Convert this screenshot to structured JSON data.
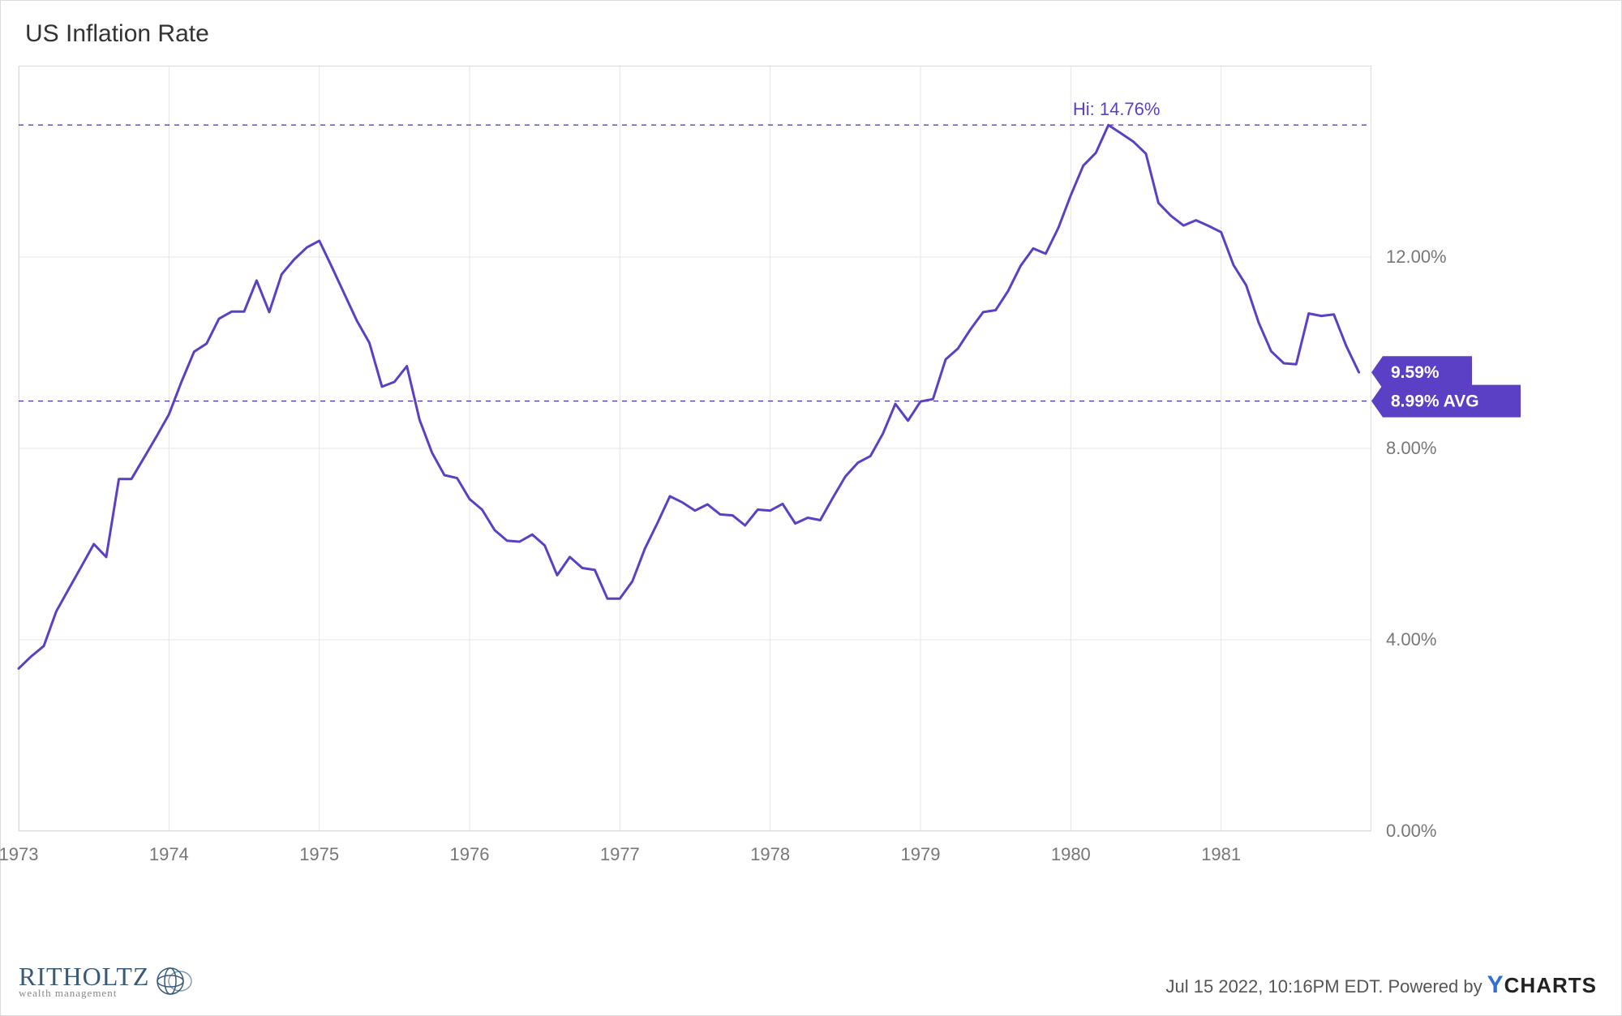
{
  "title": "US Inflation Rate",
  "footer": {
    "timestamp": "Jul 15 2022, 10:16PM EDT. Powered by",
    "brand_logo_text": "RITHOLTZ",
    "brand_subtext": "wealth management",
    "ycharts_text": "CHARTS"
  },
  "chart": {
    "type": "line",
    "background_color": "#ffffff",
    "grid_color": "#e6e6e6",
    "border_color": "#dcdcdc",
    "line_color": "#5b3fc4",
    "line_width": 3,
    "dashed_line_color": "#4b2fb0",
    "dashed_width": 1.2,
    "dashed_dasharray": "6 6",
    "axis_text_color": "#777",
    "axis_fontsize": 22,
    "hi_label": "Hi: 14.76%",
    "hi_label_color": "#5b3fc4",
    "flags": {
      "current": {
        "text": "9.59%",
        "bg": "#5b3fc4",
        "value": 9.59
      },
      "avg": {
        "text": "8.99% AVG",
        "bg": "#5b3fc4",
        "value": 8.99
      }
    },
    "x": {
      "start": 1973.0,
      "end": 1982.0,
      "tick_start": 1973,
      "tick_end": 1981,
      "tick_step": 1
    },
    "y": {
      "min": 0.0,
      "max": 16.0,
      "ticks": [
        0,
        4,
        8,
        12
      ],
      "tick_format_suffix": ".00%"
    },
    "hi_value": 14.76,
    "avg_value": 8.99,
    "data": [
      [
        1973.0,
        3.4
      ],
      [
        1973.083,
        3.65
      ],
      [
        1973.167,
        3.87
      ],
      [
        1973.25,
        4.59
      ],
      [
        1973.333,
        5.06
      ],
      [
        1973.417,
        5.53
      ],
      [
        1973.5,
        6.0
      ],
      [
        1973.583,
        5.73
      ],
      [
        1973.667,
        7.36
      ],
      [
        1973.75,
        7.36
      ],
      [
        1973.833,
        7.8
      ],
      [
        1973.917,
        8.25
      ],
      [
        1974.0,
        8.71
      ],
      [
        1974.083,
        9.39
      ],
      [
        1974.167,
        10.02
      ],
      [
        1974.25,
        10.19
      ],
      [
        1974.333,
        10.71
      ],
      [
        1974.417,
        10.86
      ],
      [
        1974.5,
        10.86
      ],
      [
        1974.583,
        11.51
      ],
      [
        1974.667,
        10.85
      ],
      [
        1974.75,
        11.64
      ],
      [
        1974.833,
        11.95
      ],
      [
        1974.917,
        12.2
      ],
      [
        1975.0,
        12.34
      ],
      [
        1975.083,
        11.8
      ],
      [
        1975.167,
        11.23
      ],
      [
        1975.25,
        10.67
      ],
      [
        1975.333,
        10.21
      ],
      [
        1975.417,
        9.29
      ],
      [
        1975.5,
        9.39
      ],
      [
        1975.583,
        9.72
      ],
      [
        1975.667,
        8.6
      ],
      [
        1975.75,
        7.91
      ],
      [
        1975.833,
        7.44
      ],
      [
        1975.917,
        7.38
      ],
      [
        1976.0,
        6.94
      ],
      [
        1976.083,
        6.72
      ],
      [
        1976.167,
        6.29
      ],
      [
        1976.25,
        6.07
      ],
      [
        1976.333,
        6.05
      ],
      [
        1976.417,
        6.2
      ],
      [
        1976.5,
        5.97
      ],
      [
        1976.583,
        5.35
      ],
      [
        1976.667,
        5.73
      ],
      [
        1976.75,
        5.5
      ],
      [
        1976.833,
        5.46
      ],
      [
        1976.917,
        4.86
      ],
      [
        1977.0,
        4.86
      ],
      [
        1977.083,
        5.22
      ],
      [
        1977.167,
        5.91
      ],
      [
        1977.25,
        6.44
      ],
      [
        1977.333,
        7.0
      ],
      [
        1977.417,
        6.87
      ],
      [
        1977.5,
        6.7
      ],
      [
        1977.583,
        6.83
      ],
      [
        1977.667,
        6.62
      ],
      [
        1977.75,
        6.6
      ],
      [
        1977.833,
        6.39
      ],
      [
        1977.917,
        6.72
      ],
      [
        1978.0,
        6.7
      ],
      [
        1978.083,
        6.84
      ],
      [
        1978.167,
        6.43
      ],
      [
        1978.25,
        6.55
      ],
      [
        1978.333,
        6.5
      ],
      [
        1978.417,
        6.97
      ],
      [
        1978.5,
        7.41
      ],
      [
        1978.583,
        7.7
      ],
      [
        1978.667,
        7.84
      ],
      [
        1978.75,
        8.31
      ],
      [
        1978.833,
        8.93
      ],
      [
        1978.917,
        8.58
      ],
      [
        1979.0,
        8.98
      ],
      [
        1979.083,
        9.03
      ],
      [
        1979.167,
        9.86
      ],
      [
        1979.25,
        10.09
      ],
      [
        1979.333,
        10.49
      ],
      [
        1979.417,
        10.85
      ],
      [
        1979.5,
        10.89
      ],
      [
        1979.583,
        11.29
      ],
      [
        1979.667,
        11.82
      ],
      [
        1979.75,
        12.18
      ],
      [
        1979.833,
        12.07
      ],
      [
        1979.917,
        12.61
      ],
      [
        1980.0,
        13.29
      ],
      [
        1980.083,
        13.91
      ],
      [
        1980.167,
        14.18
      ],
      [
        1980.25,
        14.76
      ],
      [
        1980.333,
        14.59
      ],
      [
        1980.417,
        14.41
      ],
      [
        1980.5,
        14.16
      ],
      [
        1980.583,
        13.13
      ],
      [
        1980.667,
        12.86
      ],
      [
        1980.75,
        12.66
      ],
      [
        1980.833,
        12.77
      ],
      [
        1980.917,
        12.65
      ],
      [
        1981.0,
        12.52
      ],
      [
        1981.083,
        11.83
      ],
      [
        1981.167,
        11.41
      ],
      [
        1981.25,
        10.63
      ],
      [
        1981.333,
        10.03
      ],
      [
        1981.417,
        9.78
      ],
      [
        1981.5,
        9.76
      ],
      [
        1981.583,
        10.82
      ],
      [
        1981.667,
        10.77
      ],
      [
        1981.75,
        10.8
      ],
      [
        1981.833,
        10.14
      ],
      [
        1981.917,
        9.59
      ]
    ]
  }
}
